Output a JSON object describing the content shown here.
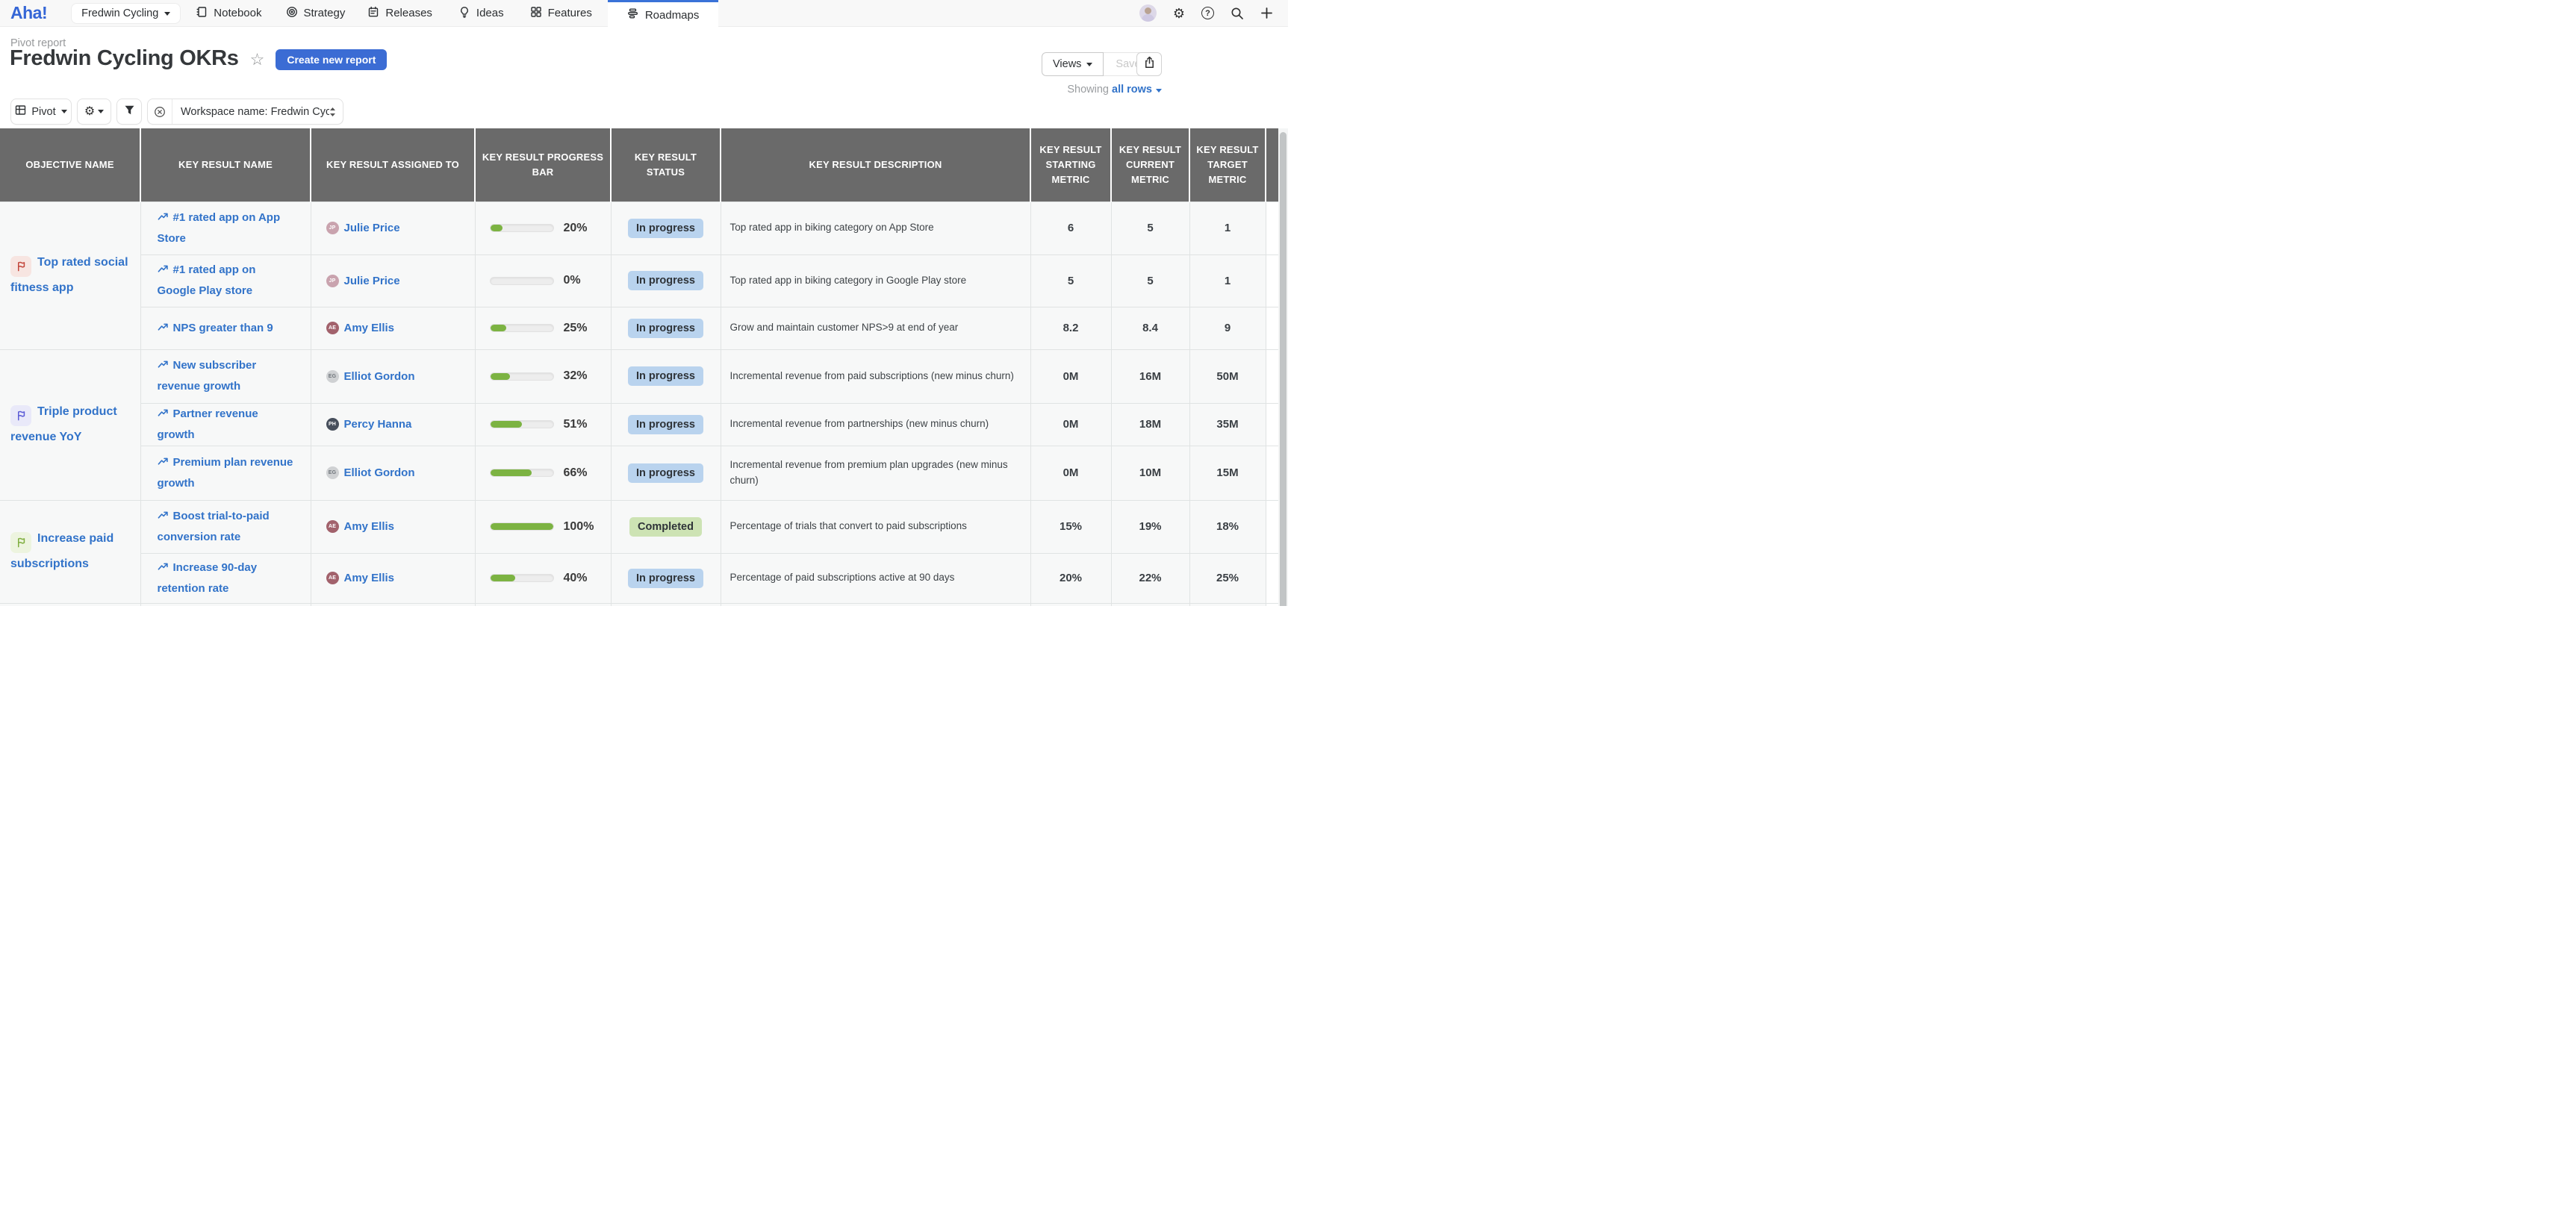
{
  "nav": {
    "logo": "Aha!",
    "workspace_selector": "Fredwin Cycling",
    "items": [
      {
        "label": "Notebook"
      },
      {
        "label": "Strategy"
      },
      {
        "label": "Releases"
      },
      {
        "label": "Ideas"
      },
      {
        "label": "Features"
      },
      {
        "label": "Roadmaps",
        "active": true
      }
    ]
  },
  "header": {
    "breadcrumb": "Pivot report",
    "title": "Fredwin Cycling OKRs",
    "create_button": "Create new report",
    "views_button": "Views",
    "save_button": "Save",
    "showing_label": "Showing",
    "showing_value": "all rows"
  },
  "toolbar": {
    "pivot_button": "Pivot",
    "workspace_filter": "Workspace name: Fredwin Cyclin..."
  },
  "colors": {
    "accent_blue": "#3b6cd4",
    "link_blue": "#3273c9",
    "progress_green": "#7cb342",
    "badge_in_progress_bg": "#b9d3ee",
    "badge_completed_bg": "#cde3b4",
    "header_gray": "#6a6a6a"
  },
  "table": {
    "columns": [
      "OBJECTIVE NAME",
      "KEY RESULT NAME",
      "KEY RESULT ASSIGNED TO",
      "KEY RESULT PROGRESS BAR",
      "KEY RESULT STATUS",
      "KEY RESULT DESCRIPTION",
      "KEY RESULT STARTING METRIC",
      "KEY RESULT CURRENT METRIC",
      "KEY RESULT TARGET METRIC"
    ],
    "groups": [
      {
        "objective": "Top rated social fitness app",
        "flag_color": "#c2453a",
        "flag_bg": "#f7e5e1",
        "rows": [
          {
            "name": "#1 rated app on App Store",
            "assignee": "Julie Price",
            "avatar_color": "#c9a3ae",
            "progress": 20,
            "progress_label": "20%",
            "status": "In progress",
            "description": "Top rated app in biking category on App Store",
            "starting": "6",
            "current": "5",
            "target": "1"
          },
          {
            "name": "#1 rated app on Google Play store",
            "assignee": "Julie Price",
            "avatar_color": "#c9a3ae",
            "progress": 0,
            "progress_label": "0%",
            "status": "In progress",
            "description": "Top rated app in biking category in Google Play store",
            "starting": "5",
            "current": "5",
            "target": "1"
          },
          {
            "name": "NPS greater than 9",
            "assignee": "Amy Ellis",
            "avatar_color": "#a2626c",
            "progress": 25,
            "progress_label": "25%",
            "status": "In progress",
            "description": "Grow and maintain customer NPS>9 at end of year",
            "starting": "8.2",
            "current": "8.4",
            "target": "9"
          }
        ]
      },
      {
        "objective": "Triple product revenue YoY",
        "flag_color": "#5b5bd6",
        "flag_bg": "#e9e9f9",
        "rows": [
          {
            "name": "New subscriber revenue growth",
            "assignee": "Elliot Gordon",
            "avatar_color": "#cfd1d3",
            "avatar_text": "#70767c",
            "progress": 32,
            "progress_label": "32%",
            "status": "In progress",
            "description": "Incremental revenue from paid subscriptions (new minus churn)",
            "starting": "0M",
            "current": "16M",
            "target": "50M"
          },
          {
            "name": "Partner revenue growth",
            "assignee": "Percy Hanna",
            "avatar_color": "#474f5c",
            "progress": 51,
            "progress_label": "51%",
            "status": "In progress",
            "description": "Incremental revenue from partnerships (new minus churn)",
            "starting": "0M",
            "current": "18M",
            "target": "35M"
          },
          {
            "name": "Premium plan revenue growth",
            "assignee": "Elliot Gordon",
            "avatar_color": "#cfd1d3",
            "avatar_text": "#70767c",
            "progress": 66,
            "progress_label": "66%",
            "status": "In progress",
            "description": "Incremental revenue from premium plan upgrades (new minus churn)",
            "starting": "0M",
            "current": "10M",
            "target": "15M"
          }
        ]
      },
      {
        "objective": "Increase paid subscriptions",
        "flag_color": "#7fae3f",
        "flag_bg": "#edf4df",
        "rows": [
          {
            "name": "Boost trial-to-paid conversion rate",
            "assignee": "Amy Ellis",
            "avatar_color": "#a2626c",
            "progress": 100,
            "progress_label": "100%",
            "status": "Completed",
            "description": "Percentage of trials that convert to paid subscriptions",
            "starting": "15%",
            "current": "19%",
            "target": "18%"
          },
          {
            "name": "Increase 90-day retention rate",
            "assignee": "Amy Ellis",
            "avatar_color": "#a2626c",
            "progress": 40,
            "progress_label": "40%",
            "status": "In progress",
            "description": "Percentage of paid subscriptions active at 90 days",
            "starting": "20%",
            "current": "22%",
            "target": "25%"
          }
        ]
      }
    ]
  }
}
